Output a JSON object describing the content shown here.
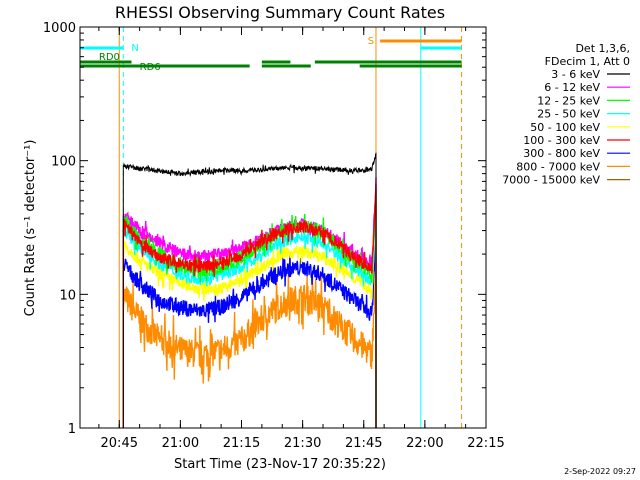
{
  "chart_data": {
    "type": "line",
    "title": "RHESSI Observing Summary Count Rates",
    "xlabel": "Start Time (23-Nov-17 20:35:22)",
    "ylabel": "Count Rate (s⁻¹ detector⁻¹)",
    "y_scale": "log",
    "ylim": [
      1,
      1000
    ],
    "xlim": [
      "20:35:22",
      "22:15:00"
    ],
    "x_ticks": [
      "20:45",
      "21:00",
      "21:15",
      "21:30",
      "21:45",
      "22:00",
      "22:15"
    ],
    "y_ticks": [
      "1",
      "10",
      "100",
      "1000"
    ],
    "grid": false,
    "footer": "2-Sep-2022 09:27",
    "legend": {
      "position": "right",
      "header": [
        "Det 1,3,6,",
        "FDecim 1, Att 0"
      ]
    },
    "series": [
      {
        "name": "3 - 6 keV",
        "color": "#000000",
        "x": [
          "20:46",
          "20:50",
          "20:55",
          "21:00",
          "21:05",
          "21:10",
          "21:15",
          "21:20",
          "21:25",
          "21:30",
          "21:35",
          "21:40",
          "21:45",
          "21:47",
          "21:48"
        ],
        "values": [
          92,
          87,
          84,
          80,
          82,
          85,
          84,
          86,
          88,
          88,
          87,
          85,
          84,
          88,
          110
        ]
      },
      {
        "name": "6 - 12 keV",
        "color": "#ff00ff",
        "x": [
          "20:46",
          "20:50",
          "20:55",
          "21:00",
          "21:05",
          "21:10",
          "21:15",
          "21:20",
          "21:25",
          "21:30",
          "21:35",
          "21:40",
          "21:45",
          "21:47",
          "21:48"
        ],
        "values": [
          40,
          30,
          24,
          20,
          19,
          20,
          22,
          26,
          31,
          33,
          30,
          23,
          18,
          16,
          70
        ]
      },
      {
        "name": "12 - 25 keV",
        "color": "#00ff00",
        "x": [
          "20:46",
          "20:50",
          "20:55",
          "21:00",
          "21:05",
          "21:10",
          "21:15",
          "21:20",
          "21:25",
          "21:30",
          "21:35",
          "21:40",
          "21:45",
          "21:47",
          "21:48"
        ],
        "values": [
          36,
          26,
          20,
          16,
          15,
          16,
          19,
          24,
          30,
          33,
          29,
          21,
          16,
          14,
          60
        ]
      },
      {
        "name": "25 - 50 keV",
        "color": "#00ffff",
        "x": [
          "20:46",
          "20:50",
          "20:55",
          "21:00",
          "21:05",
          "21:10",
          "21:15",
          "21:20",
          "21:25",
          "21:30",
          "21:35",
          "21:40",
          "21:45",
          "21:47",
          "21:48"
        ],
        "values": [
          30,
          22,
          17,
          14,
          13,
          14,
          16,
          20,
          25,
          27,
          24,
          18,
          14,
          12,
          50
        ]
      },
      {
        "name": "50 - 100 keV",
        "color": "#ffff00",
        "x": [
          "20:46",
          "20:50",
          "20:55",
          "21:00",
          "21:05",
          "21:10",
          "21:15",
          "21:20",
          "21:25",
          "21:30",
          "21:35",
          "21:40",
          "21:45",
          "21:47",
          "21:48"
        ],
        "values": [
          24,
          18,
          14,
          12,
          11,
          11,
          13,
          16,
          20,
          21,
          19,
          15,
          12,
          10,
          40
        ]
      },
      {
        "name": "100 - 300 keV",
        "color": "#ff0000",
        "x": [
          "20:46",
          "20:50",
          "20:55",
          "21:00",
          "21:05",
          "21:10",
          "21:15",
          "21:20",
          "21:25",
          "21:30",
          "21:35",
          "21:40",
          "21:45",
          "21:47",
          "21:48"
        ],
        "values": [
          34,
          24,
          19,
          17,
          16,
          17,
          20,
          25,
          30,
          32,
          29,
          22,
          17,
          15,
          65
        ]
      },
      {
        "name": "300 - 800 keV",
        "color": "#0000ff",
        "x": [
          "20:46",
          "20:50",
          "20:55",
          "21:00",
          "21:05",
          "21:10",
          "21:15",
          "21:20",
          "21:25",
          "21:30",
          "21:35",
          "21:40",
          "21:45",
          "21:47",
          "21:48"
        ],
        "values": [
          17,
          12,
          9,
          8,
          7.5,
          8,
          9.5,
          12,
          15,
          16,
          14,
          10.5,
          8,
          7,
          30
        ]
      },
      {
        "name": "800 - 7000 keV",
        "color": "#ff8c00",
        "x": [
          "20:46",
          "20:50",
          "20:55",
          "21:00",
          "21:05",
          "21:10",
          "21:15",
          "21:20",
          "21:25",
          "21:30",
          "21:35",
          "21:40",
          "21:45",
          "21:47",
          "21:48"
        ],
        "values": [
          10,
          6.5,
          4.5,
          3.8,
          3.5,
          3.8,
          4.5,
          6.5,
          8.5,
          9.5,
          8,
          5.5,
          4,
          3.5,
          14
        ]
      },
      {
        "name": "7000 - 15000 keV",
        "color": "#996600",
        "x": [],
        "values": []
      }
    ],
    "status_bars": [
      {
        "label": "N",
        "color": "#00ffff",
        "segments": [
          [
            "20:35:22",
            "20:46:00"
          ],
          [
            "21:59:00",
            "22:09:00"
          ]
        ]
      },
      {
        "label": "S",
        "color": "#ff8c00",
        "segments": [
          [
            "21:49:00",
            "22:09:00"
          ]
        ]
      },
      {
        "label": "RD0",
        "color": "#008000",
        "segments": [
          [
            "20:35:22",
            "20:48:00"
          ],
          [
            "21:20:00",
            "21:27:00"
          ],
          [
            "21:33:00",
            "22:09:00"
          ]
        ]
      },
      {
        "label": "RD6",
        "color": "#008000",
        "segments": [
          [
            "20:35:22",
            "21:17:00"
          ],
          [
            "21:20:00",
            "21:32:00"
          ],
          [
            "21:44:00",
            "22:09:00"
          ]
        ]
      }
    ],
    "vertical_markers": [
      {
        "time": "20:35:22",
        "color": "#00ffff",
        "style": "solid"
      },
      {
        "time": "20:45:00",
        "color": "#ff8c00",
        "style": "solid"
      },
      {
        "time": "20:46:00",
        "color": "#00ffff",
        "style": "dashed"
      },
      {
        "time": "21:48:00",
        "color": "#ff8c00",
        "style": "solid"
      },
      {
        "time": "21:59:00",
        "color": "#00ffff",
        "style": "solid"
      },
      {
        "time": "22:09:00",
        "color": "#ff8c00",
        "style": "dashed"
      }
    ]
  }
}
